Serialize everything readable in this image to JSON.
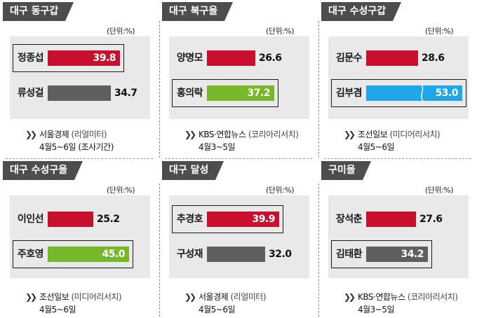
{
  "colors": {
    "red": "#c8102e",
    "gray": "#5f5f5f",
    "green": "#77b82b",
    "blue": "#1ea6e6",
    "tab_bg": "#4d4d4d"
  },
  "chart_data": [
    {
      "type": "bar",
      "title": "대구 동구갑",
      "unit": "(단위:%)",
      "categories": [
        "정종섭",
        "류성걸"
      ],
      "values": [
        39.8,
        34.7
      ],
      "value_labels": [
        "39.8",
        "34.7"
      ],
      "bar_colors": [
        "red",
        "gray"
      ],
      "highlighted": [
        true,
        false
      ],
      "source": "서울경제",
      "pollster": "(리얼미터)",
      "date": "4월5~6일 (조사기간)"
    },
    {
      "type": "bar",
      "title": "대구 북구을",
      "unit": "(단위:%)",
      "categories": [
        "양명모",
        "홍의락"
      ],
      "values": [
        26.6,
        37.2
      ],
      "value_labels": [
        "26.6",
        "37.2"
      ],
      "bar_colors": [
        "red",
        "green"
      ],
      "highlighted": [
        false,
        true
      ],
      "source": "KBS·연합뉴스",
      "pollster": "(코리아리서치)",
      "date": "4월3~5일"
    },
    {
      "type": "bar",
      "title": "대구 수성구갑",
      "unit": "(단위:%)",
      "categories": [
        "김문수",
        "김부겸"
      ],
      "values": [
        28.6,
        53.0
      ],
      "value_labels": [
        "28.6",
        "53.0"
      ],
      "bar_colors": [
        "red",
        "blue"
      ],
      "highlighted": [
        false,
        true
      ],
      "source": "조선일보",
      "pollster": "(미디어리서치)",
      "date": "4월5~6일"
    },
    {
      "type": "bar",
      "title": "대구 수성구을",
      "unit": "(단위:%)",
      "categories": [
        "이인선",
        "주호영"
      ],
      "values": [
        25.2,
        45.0
      ],
      "value_labels": [
        "25.2",
        "45.0"
      ],
      "bar_colors": [
        "red",
        "green"
      ],
      "highlighted": [
        false,
        true
      ],
      "source": "조선일보",
      "pollster": "(미디어리서치)",
      "date": "4월5~6일"
    },
    {
      "type": "bar",
      "title": "대구 달성",
      "unit": "(단위:%)",
      "categories": [
        "추경호",
        "구성재"
      ],
      "values": [
        39.9,
        32.0
      ],
      "value_labels": [
        "39.9",
        "32.0"
      ],
      "bar_colors": [
        "red",
        "gray"
      ],
      "highlighted": [
        true,
        false
      ],
      "source": "서울경제",
      "pollster": "(리얼미터)",
      "date": "4월5~6일"
    },
    {
      "type": "bar",
      "title": "구미을",
      "unit": "(단위:%)",
      "categories": [
        "장석춘",
        "김태환"
      ],
      "values": [
        27.6,
        34.2
      ],
      "value_labels": [
        "27.6",
        "34.2"
      ],
      "bar_colors": [
        "red",
        "gray"
      ],
      "highlighted": [
        false,
        true
      ],
      "source": "KBS·연합뉴스",
      "pollster": "(코리아리서치)",
      "date": "4월3~5일"
    }
  ]
}
